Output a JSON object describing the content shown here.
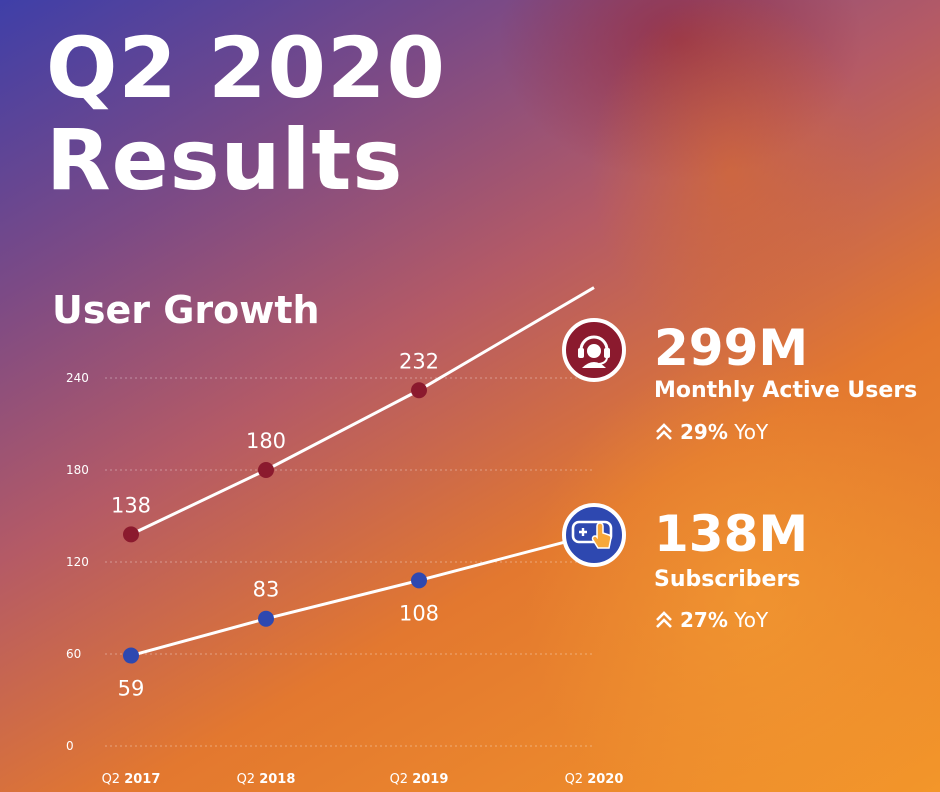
{
  "headline": {
    "line1": "Q2 2020",
    "line2": "Results"
  },
  "section_title": "User Growth",
  "colors": {
    "mau": "#8b1a2e",
    "subs": "#2e48b0",
    "line": "#ffffff"
  },
  "chart_data": {
    "type": "line",
    "title": "User Growth",
    "xlabel": "",
    "ylabel": "",
    "ylim": [
      0,
      240
    ],
    "yticks": [
      "0",
      "60",
      "120",
      "180",
      "240"
    ],
    "categories": [
      {
        "prefix": "Q2",
        "year": "2017"
      },
      {
        "prefix": "Q2",
        "year": "2018"
      },
      {
        "prefix": "Q2",
        "year": "2019"
      },
      {
        "prefix": "Q2",
        "year": "2020"
      }
    ],
    "grid": true,
    "series": [
      {
        "name": "Monthly Active Users",
        "values": [
          138,
          180,
          232,
          299
        ],
        "labels": [
          "138",
          "180",
          "232",
          ""
        ]
      },
      {
        "name": "Subscribers",
        "values": [
          59,
          83,
          108,
          138
        ],
        "labels": [
          "59",
          "83",
          "108",
          ""
        ]
      }
    ]
  },
  "stats": [
    {
      "icon": "headset-icon",
      "value": "299M",
      "label": "Monthly Active Users",
      "yoy_pct": "29%",
      "yoy_suffix": "YoY"
    },
    {
      "icon": "game-controller-icon",
      "value": "138M",
      "label": "Subscribers",
      "yoy_pct": "27%",
      "yoy_suffix": "YoY"
    }
  ]
}
